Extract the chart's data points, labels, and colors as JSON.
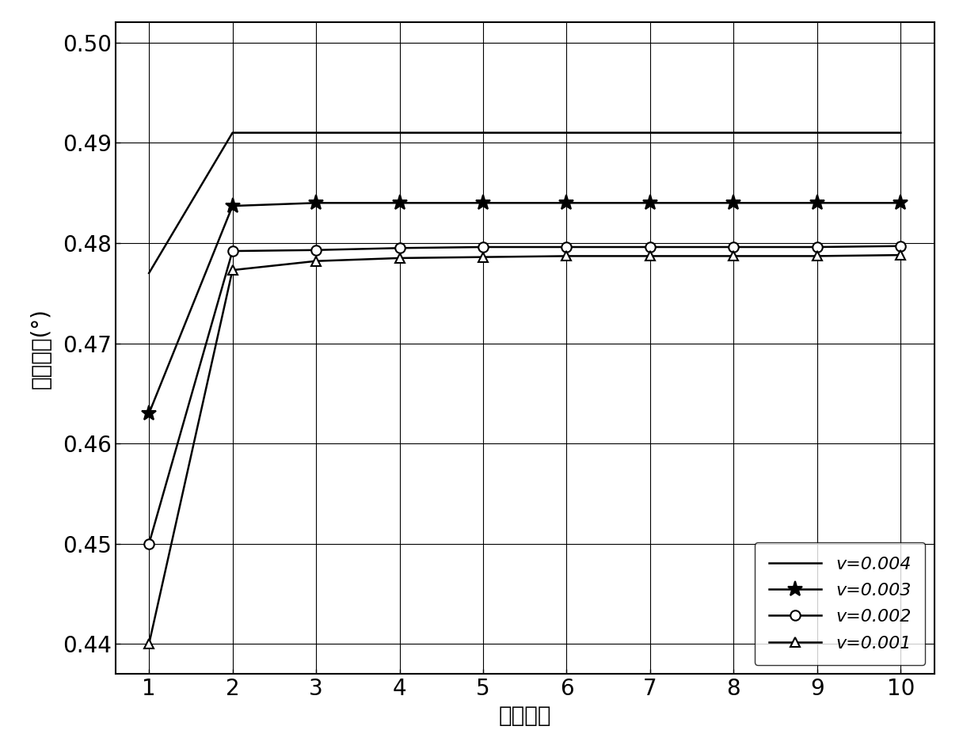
{
  "x": [
    1,
    2,
    3,
    4,
    5,
    6,
    7,
    8,
    9,
    10
  ],
  "series": [
    {
      "label": "v=0.004",
      "marker": "none",
      "markersize": 0,
      "linestyle": "-",
      "color": "#000000",
      "linewidth": 1.8,
      "y": [
        0.477,
        0.491,
        0.491,
        0.491,
        0.491,
        0.491,
        0.491,
        0.491,
        0.491,
        0.491
      ]
    },
    {
      "label": "v=0.003",
      "marker": "*",
      "markersize": 14,
      "linestyle": "-",
      "color": "#000000",
      "linewidth": 1.8,
      "y": [
        0.463,
        0.4837,
        0.484,
        0.484,
        0.484,
        0.484,
        0.484,
        0.484,
        0.484,
        0.484
      ]
    },
    {
      "label": "v=0.002",
      "marker": "o",
      "markersize": 9,
      "linestyle": "-",
      "color": "#000000",
      "linewidth": 1.8,
      "y": [
        0.45,
        0.4792,
        0.4793,
        0.4795,
        0.4796,
        0.4796,
        0.4796,
        0.4796,
        0.4796,
        0.4797
      ]
    },
    {
      "label": "v=0.001",
      "marker": "^",
      "markersize": 9,
      "linestyle": "-",
      "color": "#000000",
      "linewidth": 1.8,
      "y": [
        0.44,
        0.4773,
        0.4782,
        0.4785,
        0.4786,
        0.4787,
        0.4787,
        0.4787,
        0.4787,
        0.4788
      ]
    }
  ],
  "xlim": [
    0.6,
    10.4
  ],
  "ylim": [
    0.437,
    0.502
  ],
  "xticks": [
    1,
    2,
    3,
    4,
    5,
    6,
    7,
    8,
    9,
    10
  ],
  "yticks": [
    0.44,
    0.45,
    0.46,
    0.47,
    0.48,
    0.49,
    0.5
  ],
  "xlabel": "迭代次数",
  "ylabel": "空间角度(°)",
  "legend_loc": "lower right",
  "background_color": "#ffffff",
  "font_color": "#000000",
  "xlabel_fontsize": 20,
  "ylabel_fontsize": 20,
  "tick_fontsize": 20,
  "legend_fontsize": 16
}
